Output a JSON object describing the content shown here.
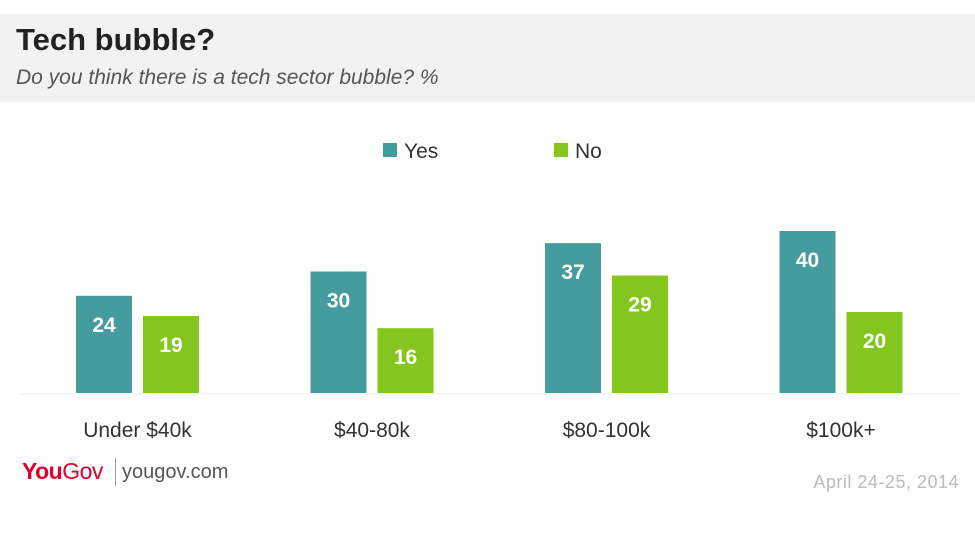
{
  "header": {
    "title": "Tech bubble?",
    "subtitle": "Do you think there is a tech sector bubble? %"
  },
  "colors": {
    "yes": "#459c9f",
    "no": "#85c61e",
    "header_bg": "#f2f2f2",
    "brand": "#e0002a"
  },
  "chart_data": {
    "type": "bar",
    "categories": [
      "Under $40k",
      "$40-80k",
      "$80-100k",
      "$100k+"
    ],
    "series": [
      {
        "name": "Yes",
        "values": [
          24,
          30,
          37,
          40
        ]
      },
      {
        "name": "No",
        "values": [
          19,
          16,
          29,
          20
        ]
      }
    ],
    "ylim": [
      0,
      40
    ],
    "grid": false,
    "legend": "top-center"
  },
  "footer": {
    "logo_you": "You",
    "logo_gov": "Gov",
    "site": "yougov.com",
    "date": "April 24-25, 2014"
  }
}
